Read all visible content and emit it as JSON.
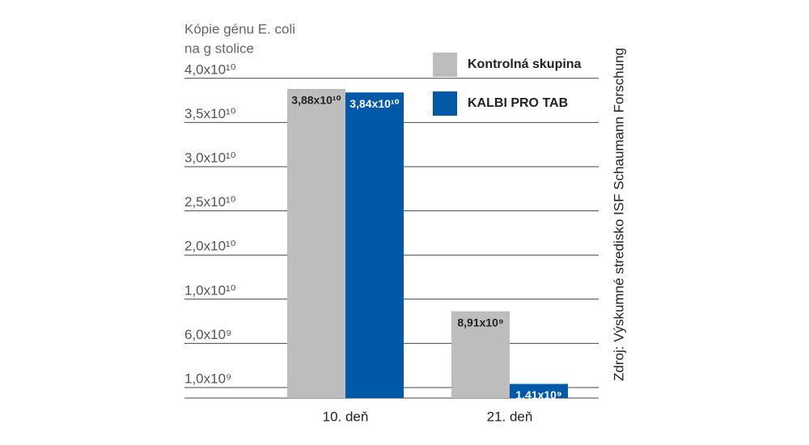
{
  "chart_data": {
    "type": "bar",
    "y_axis_title": [
      "Kópie génu E. coli",
      "na g stolice"
    ],
    "source": "Zdroj: Výskumné stredisko ISF Schaumann Forschung",
    "categories": [
      "10. deň",
      "21. deň"
    ],
    "series": [
      {
        "name": "Kontrolná skupina",
        "color": "#bdbdbd",
        "label_color": "#222222",
        "values": [
          38800000000,
          8910000000
        ],
        "value_labels": [
          "3,88x10¹⁰",
          "8,91x10⁹"
        ]
      },
      {
        "name": "KALBI PRO TAB",
        "color": "#0058a8",
        "label_color": "#ffffff",
        "values": [
          38400000000,
          1410000000
        ],
        "value_labels": [
          "3,84x10¹⁰",
          "1,41x10⁹"
        ]
      }
    ],
    "ylim": [
      0,
      40000000000
    ],
    "yticks": [
      {
        "value": 1000000000,
        "label": "1,0x10⁹"
      },
      {
        "value": 6000000000,
        "label": "6,0x10⁹"
      },
      {
        "value": 10000000000,
        "label": "1,0x10¹⁰"
      },
      {
        "value": 20000000000,
        "label": "2,0x10¹⁰"
      },
      {
        "value": 25000000000,
        "label": "2,5x10¹⁰"
      },
      {
        "value": 30000000000,
        "label": "3,0x10¹⁰"
      },
      {
        "value": 35000000000,
        "label": "3,5x10¹⁰"
      },
      {
        "value": 40000000000,
        "label": "4,0x10¹⁰"
      }
    ],
    "grid": true,
    "legend": "top-right"
  }
}
